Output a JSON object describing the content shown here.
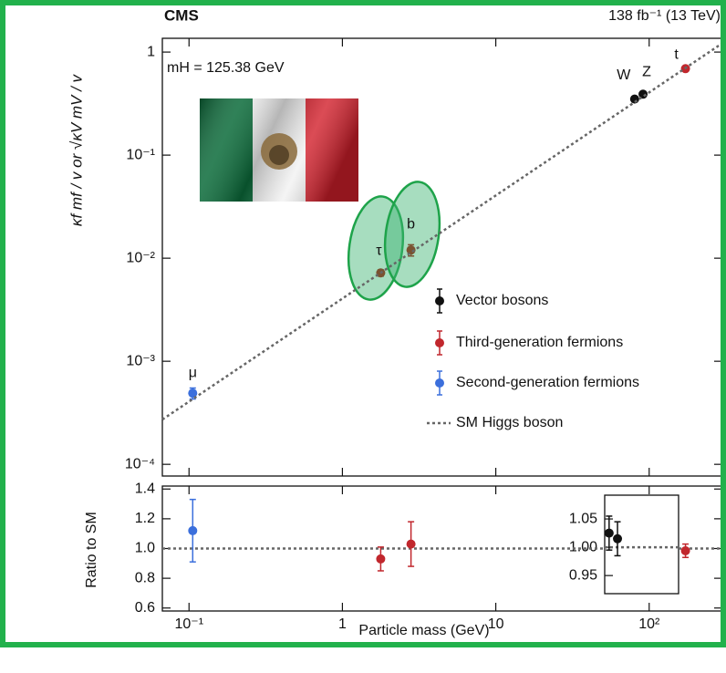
{
  "chart_data": {
    "type": "scatter",
    "title": "CMS",
    "subtitle": "138 fb⁻¹ (13 TeV)",
    "annotation": "mH = 125.38 GeV",
    "xlabel": "Particle mass (GeV)",
    "ylabel": "κf mf / v  or  √κV mV / v",
    "ratio_ylabel": "Ratio to SM",
    "log_x": true,
    "log_y": true,
    "xlim": [
      0.067,
      300
    ],
    "xticks": [
      {
        "value": 0.1,
        "label": "10⁻¹"
      },
      1,
      10,
      {
        "value": 100,
        "label": "10²"
      }
    ],
    "ylim": [
      7.7e-05,
      1.36
    ],
    "yticks": [
      1,
      {
        "value": 0.1,
        "label": "10⁻¹"
      },
      {
        "value": 0.01,
        "label": "10⁻²"
      },
      {
        "value": 0.001,
        "label": "10⁻³"
      },
      {
        "value": 0.0001,
        "label": "10⁻⁴"
      }
    ],
    "ratio_ylim": [
      0.58,
      1.42
    ],
    "ratio_yticks": [
      1.4,
      1.2,
      {
        "value": 1.0,
        "label": "1.0"
      },
      0.8,
      0.6
    ],
    "inset_ylim": [
      0.918,
      1.092
    ],
    "inset_yticks": [
      1.05,
      {
        "value": 1.0,
        "label": "1.00"
      },
      0.95
    ],
    "ratio_reference": 1,
    "series": [
      {
        "name": "Vector bosons",
        "color": "#111111",
        "labels": [
          "W",
          "Z"
        ],
        "x": [
          80.4,
          91.2
        ],
        "values": [
          0.35,
          0.39
        ],
        "errors": [
          0.012,
          0.012
        ],
        "ratio": [
          1.025,
          1.015
        ],
        "ratio_errors": [
          0.03,
          0.03
        ],
        "inset": true
      },
      {
        "name": "Third-generation fermions",
        "color": "#c1272d",
        "labels": [
          "τ",
          "b",
          "t"
        ],
        "x": [
          1.777,
          2.8,
          172.5
        ],
        "values": [
          0.0072,
          0.012,
          0.69
        ],
        "errors": [
          0.0005,
          0.0015,
          0.03
        ],
        "ratio": [
          0.93,
          1.03,
          0.985
        ],
        "ratio_errors": [
          0.08,
          0.15,
          0.045
        ]
      },
      {
        "name": "Second-generation fermions",
        "color": "#3b6fdc",
        "labels": [
          "μ"
        ],
        "x": [
          0.1057
        ],
        "values": [
          0.00049
        ],
        "errors": [
          6e-05
        ],
        "ratio": [
          1.12
        ],
        "ratio_errors": [
          0.21
        ]
      },
      {
        "name": "SM Higgs boson",
        "color": "#666666",
        "line": true,
        "x": [
          0.067,
          300
        ],
        "values": [
          0.000272,
          1.218
        ]
      }
    ]
  }
}
